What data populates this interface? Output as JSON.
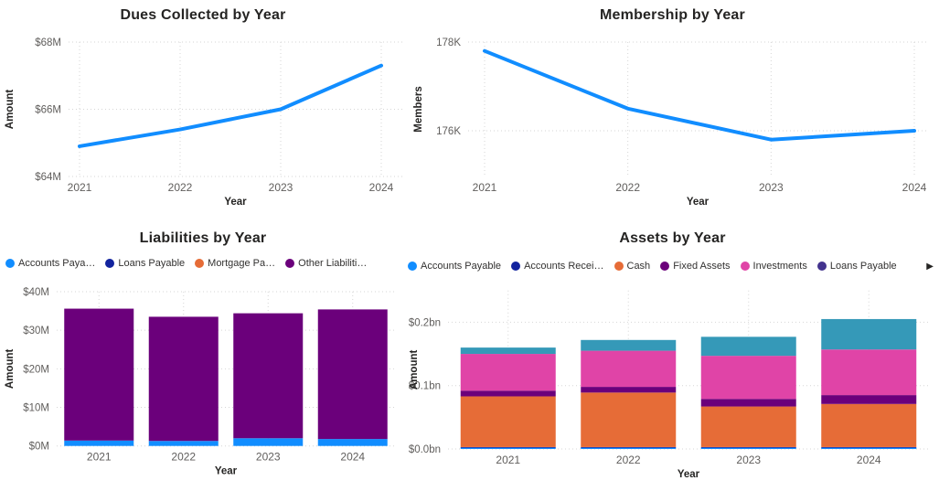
{
  "dashboard": {
    "background": "#FFFFFF"
  },
  "chart_data": [
    {
      "type": "line",
      "title": "Dues Collected by Year",
      "xlabel": "Year",
      "ylabel": "Amount",
      "unit": "$M",
      "categories": [
        "2021",
        "2022",
        "2023",
        "2024"
      ],
      "values": [
        64.9,
        65.4,
        66.0,
        67.3
      ],
      "ylim": [
        64,
        68
      ],
      "y_ticks": [
        {
          "v": 64,
          "label": "$64M"
        },
        {
          "v": 66,
          "label": "$66M"
        },
        {
          "v": 68,
          "label": "$68M"
        }
      ],
      "line_color": "#118DFF",
      "grid": true,
      "legend_position": "none"
    },
    {
      "type": "line",
      "title": "Membership by Year",
      "xlabel": "Year",
      "ylabel": "Members",
      "unit": "K",
      "categories": [
        "2021",
        "2022",
        "2023",
        "2024"
      ],
      "values": [
        177.8,
        176.5,
        175.8,
        176.0
      ],
      "ylim": [
        174.97,
        178
      ],
      "y_ticks": [
        {
          "v": 176,
          "label": "176K"
        },
        {
          "v": 178,
          "label": "178K"
        }
      ],
      "line_color": "#118DFF",
      "grid": true,
      "legend_position": "none"
    },
    {
      "type": "stacked_bar",
      "title": "Liabilities by Year",
      "xlabel": "Year",
      "ylabel": "Amount",
      "unit": "$M",
      "categories": [
        "2021",
        "2022",
        "2023",
        "2024"
      ],
      "ylim": [
        0,
        40
      ],
      "y_ticks": [
        {
          "v": 0,
          "label": "$0M"
        },
        {
          "v": 10,
          "label": "$10M"
        },
        {
          "v": 20,
          "label": "$20M"
        },
        {
          "v": 30,
          "label": "$30M"
        },
        {
          "v": 40,
          "label": "$40M"
        }
      ],
      "legend_position": "top",
      "legend": [
        {
          "label": "Accounts Paya…",
          "color": "#118DFF"
        },
        {
          "label": "Loans Payable",
          "color": "#12239E"
        },
        {
          "label": "Mortgage Pa…",
          "color": "#E66C37"
        },
        {
          "label": "Other Liabiliti…",
          "color": "#6B007B"
        }
      ],
      "series": [
        {
          "name": "Accounts Payable",
          "color": "#118DFF",
          "values": [
            1.4,
            1.3,
            2.0,
            1.8
          ]
        },
        {
          "name": "Loans Payable",
          "color": "#12239E",
          "values": [
            0,
            0,
            0,
            0
          ]
        },
        {
          "name": "Mortgage Payable",
          "color": "#E66C37",
          "values": [
            0,
            0,
            0,
            0
          ]
        },
        {
          "name": "Other Liabilities",
          "color": "#6B007B",
          "values": [
            34.2,
            32.2,
            32.4,
            33.6
          ]
        }
      ],
      "totals": [
        35.6,
        33.5,
        34.4,
        35.4
      ],
      "grid": true
    },
    {
      "type": "stacked_bar",
      "title": "Assets by Year",
      "xlabel": "Year",
      "ylabel": "Amount",
      "unit": "$bn",
      "categories": [
        "2021",
        "2022",
        "2023",
        "2024"
      ],
      "ylim": [
        0,
        0.25
      ],
      "y_ticks": [
        {
          "v": 0,
          "label": "$0.0bn"
        },
        {
          "v": 0.1,
          "label": "$0.1bn"
        },
        {
          "v": 0.2,
          "label": "$0.2bn"
        }
      ],
      "legend_position": "top",
      "legend_overflow_icon": "▶",
      "legend": [
        {
          "label": "Accounts Payable",
          "color": "#118DFF"
        },
        {
          "label": "Accounts Recei…",
          "color": "#12239E"
        },
        {
          "label": "Cash",
          "color": "#E66C37"
        },
        {
          "label": "Fixed Assets",
          "color": "#6B007B"
        },
        {
          "label": "Investments",
          "color": "#E044A7"
        },
        {
          "label": "Loans Payable",
          "color": "#43338E"
        }
      ],
      "series": [
        {
          "name": "Accounts Payable",
          "color": "#118DFF",
          "values": [
            0.002,
            0.002,
            0.002,
            0.002
          ]
        },
        {
          "name": "Accounts Receivable",
          "color": "#12239E",
          "values": [
            0.001,
            0.001,
            0.001,
            0.001
          ]
        },
        {
          "name": "Cash",
          "color": "#E66C37",
          "values": [
            0.08,
            0.086,
            0.064,
            0.068
          ]
        },
        {
          "name": "Fixed Assets",
          "color": "#6B007B",
          "values": [
            0.009,
            0.009,
            0.012,
            0.014
          ]
        },
        {
          "name": "Investments",
          "color": "#E044A7",
          "values": [
            0.058,
            0.057,
            0.068,
            0.072
          ]
        },
        {
          "name": "Loans Payable",
          "color": "#43338E",
          "values": [
            0,
            0,
            0,
            0
          ]
        },
        {
          "name": "",
          "color": "#3599B8",
          "values": [
            0.01,
            0.017,
            0.03,
            0.048
          ]
        }
      ],
      "totals": [
        0.16,
        0.172,
        0.177,
        0.205
      ],
      "grid": true
    }
  ]
}
